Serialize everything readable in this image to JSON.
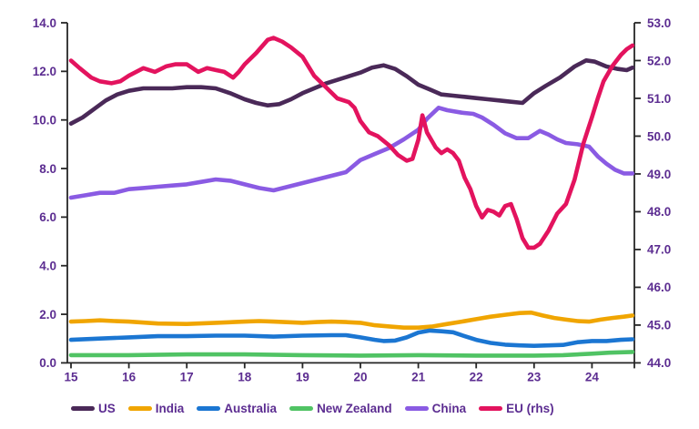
{
  "styles": {
    "axis_text_color": "#5C2D91",
    "axis_line_color": "#262626",
    "background": "#FFFFFF"
  },
  "chart_data": {
    "type": "line",
    "title": "",
    "xlabel": "",
    "ylabel_left": "",
    "ylabel_right": "",
    "grid": false,
    "legend_position": "bottom",
    "x_axis": {
      "min": 15,
      "max": 24.75,
      "tick_values": [
        15,
        16,
        17,
        18,
        19,
        20,
        21,
        22,
        23,
        24
      ],
      "tick_labels": [
        "15",
        "16",
        "17",
        "18",
        "19",
        "20",
        "21",
        "22",
        "23",
        "24"
      ]
    },
    "y_axis_left": {
      "min": 0,
      "max": 14,
      "step": 2,
      "decimals": 1,
      "tick_labels": [
        "0.0",
        "2.0",
        "4.0",
        "6.0",
        "8.0",
        "10.0",
        "12.0",
        "14.0"
      ]
    },
    "y_axis_right": {
      "min": 44,
      "max": 53,
      "step": 1,
      "decimals": 1,
      "tick_labels": [
        "44.0",
        "45.0",
        "46.0",
        "47.0",
        "48.0",
        "49.0",
        "50.0",
        "51.0",
        "52.0",
        "53.0"
      ]
    },
    "series": [
      {
        "name": "US",
        "axis": "left",
        "color": "#4A2958",
        "points": [
          [
            15.0,
            9.85
          ],
          [
            15.2,
            10.1
          ],
          [
            15.4,
            10.45
          ],
          [
            15.6,
            10.8
          ],
          [
            15.8,
            11.05
          ],
          [
            16.0,
            11.2
          ],
          [
            16.25,
            11.3
          ],
          [
            16.5,
            11.3
          ],
          [
            16.75,
            11.3
          ],
          [
            17.0,
            11.35
          ],
          [
            17.25,
            11.35
          ],
          [
            17.5,
            11.3
          ],
          [
            17.75,
            11.1
          ],
          [
            18.0,
            10.85
          ],
          [
            18.2,
            10.7
          ],
          [
            18.4,
            10.6
          ],
          [
            18.6,
            10.65
          ],
          [
            18.8,
            10.85
          ],
          [
            19.0,
            11.1
          ],
          [
            19.2,
            11.3
          ],
          [
            19.4,
            11.5
          ],
          [
            19.6,
            11.65
          ],
          [
            19.8,
            11.8
          ],
          [
            20.0,
            11.95
          ],
          [
            20.2,
            12.15
          ],
          [
            20.4,
            12.25
          ],
          [
            20.6,
            12.1
          ],
          [
            20.8,
            11.8
          ],
          [
            21.0,
            11.45
          ],
          [
            21.2,
            11.25
          ],
          [
            21.4,
            11.05
          ],
          [
            21.6,
            11.0
          ],
          [
            21.8,
            10.95
          ],
          [
            22.0,
            10.9
          ],
          [
            22.2,
            10.85
          ],
          [
            22.4,
            10.8
          ],
          [
            22.6,
            10.75
          ],
          [
            22.8,
            10.7
          ],
          [
            23.0,
            11.1
          ],
          [
            23.2,
            11.4
          ],
          [
            23.45,
            11.75
          ],
          [
            23.7,
            12.2
          ],
          [
            23.9,
            12.45
          ],
          [
            24.05,
            12.4
          ],
          [
            24.25,
            12.2
          ],
          [
            24.45,
            12.1
          ],
          [
            24.6,
            12.05
          ],
          [
            24.7,
            12.15
          ]
        ]
      },
      {
        "name": "India",
        "axis": "left",
        "color": "#F0A500",
        "points": [
          [
            15.0,
            1.7
          ],
          [
            15.25,
            1.72
          ],
          [
            15.5,
            1.75
          ],
          [
            15.75,
            1.72
          ],
          [
            16.0,
            1.7
          ],
          [
            16.5,
            1.62
          ],
          [
            17.0,
            1.6
          ],
          [
            17.5,
            1.65
          ],
          [
            18.0,
            1.7
          ],
          [
            18.25,
            1.72
          ],
          [
            18.5,
            1.7
          ],
          [
            19.0,
            1.65
          ],
          [
            19.25,
            1.68
          ],
          [
            19.5,
            1.7
          ],
          [
            19.75,
            1.68
          ],
          [
            20.0,
            1.65
          ],
          [
            20.25,
            1.55
          ],
          [
            20.5,
            1.5
          ],
          [
            20.75,
            1.45
          ],
          [
            21.0,
            1.45
          ],
          [
            21.25,
            1.5
          ],
          [
            21.5,
            1.6
          ],
          [
            21.75,
            1.7
          ],
          [
            22.0,
            1.8
          ],
          [
            22.25,
            1.9
          ],
          [
            22.5,
            1.98
          ],
          [
            22.75,
            2.05
          ],
          [
            22.95,
            2.07
          ],
          [
            23.15,
            1.95
          ],
          [
            23.35,
            1.85
          ],
          [
            23.55,
            1.78
          ],
          [
            23.75,
            1.72
          ],
          [
            23.95,
            1.7
          ],
          [
            24.15,
            1.78
          ],
          [
            24.35,
            1.85
          ],
          [
            24.55,
            1.9
          ],
          [
            24.7,
            1.95
          ]
        ]
      },
      {
        "name": "Australia",
        "axis": "left",
        "color": "#1B76D2",
        "points": [
          [
            15.0,
            0.95
          ],
          [
            15.5,
            1.0
          ],
          [
            16.0,
            1.05
          ],
          [
            16.5,
            1.1
          ],
          [
            17.0,
            1.1
          ],
          [
            17.5,
            1.12
          ],
          [
            18.0,
            1.12
          ],
          [
            18.5,
            1.08
          ],
          [
            19.0,
            1.12
          ],
          [
            19.5,
            1.14
          ],
          [
            19.75,
            1.14
          ],
          [
            20.0,
            1.05
          ],
          [
            20.25,
            0.95
          ],
          [
            20.4,
            0.9
          ],
          [
            20.6,
            0.92
          ],
          [
            20.8,
            1.05
          ],
          [
            21.0,
            1.25
          ],
          [
            21.2,
            1.33
          ],
          [
            21.4,
            1.3
          ],
          [
            21.6,
            1.26
          ],
          [
            21.8,
            1.1
          ],
          [
            22.0,
            0.95
          ],
          [
            22.25,
            0.82
          ],
          [
            22.5,
            0.75
          ],
          [
            22.75,
            0.72
          ],
          [
            23.0,
            0.7
          ],
          [
            23.25,
            0.72
          ],
          [
            23.5,
            0.74
          ],
          [
            23.75,
            0.85
          ],
          [
            24.0,
            0.9
          ],
          [
            24.25,
            0.9
          ],
          [
            24.5,
            0.95
          ],
          [
            24.7,
            0.97
          ]
        ]
      },
      {
        "name": "New Zealand",
        "axis": "left",
        "color": "#50C364",
        "points": [
          [
            15.0,
            0.32
          ],
          [
            16.0,
            0.32
          ],
          [
            17.0,
            0.35
          ],
          [
            18.0,
            0.35
          ],
          [
            19.0,
            0.32
          ],
          [
            20.0,
            0.3
          ],
          [
            21.0,
            0.32
          ],
          [
            22.0,
            0.3
          ],
          [
            23.0,
            0.3
          ],
          [
            23.5,
            0.32
          ],
          [
            24.0,
            0.38
          ],
          [
            24.3,
            0.42
          ],
          [
            24.7,
            0.45
          ]
        ]
      },
      {
        "name": "China",
        "axis": "left",
        "color": "#8A5BE3",
        "points": [
          [
            15.0,
            6.8
          ],
          [
            15.25,
            6.9
          ],
          [
            15.5,
            7.0
          ],
          [
            15.75,
            7.0
          ],
          [
            16.0,
            7.15
          ],
          [
            16.25,
            7.2
          ],
          [
            16.5,
            7.25
          ],
          [
            16.75,
            7.3
          ],
          [
            17.0,
            7.35
          ],
          [
            17.25,
            7.45
          ],
          [
            17.5,
            7.55
          ],
          [
            17.75,
            7.5
          ],
          [
            18.0,
            7.35
          ],
          [
            18.25,
            7.2
          ],
          [
            18.5,
            7.1
          ],
          [
            18.75,
            7.25
          ],
          [
            19.0,
            7.4
          ],
          [
            19.25,
            7.55
          ],
          [
            19.5,
            7.7
          ],
          [
            19.75,
            7.85
          ],
          [
            20.0,
            8.35
          ],
          [
            20.25,
            8.6
          ],
          [
            20.5,
            8.85
          ],
          [
            20.75,
            9.2
          ],
          [
            21.0,
            9.6
          ],
          [
            21.15,
            10.05
          ],
          [
            21.35,
            10.5
          ],
          [
            21.5,
            10.4
          ],
          [
            21.75,
            10.3
          ],
          [
            21.95,
            10.25
          ],
          [
            22.1,
            10.1
          ],
          [
            22.3,
            9.8
          ],
          [
            22.5,
            9.45
          ],
          [
            22.7,
            9.25
          ],
          [
            22.9,
            9.25
          ],
          [
            23.1,
            9.55
          ],
          [
            23.25,
            9.4
          ],
          [
            23.4,
            9.2
          ],
          [
            23.55,
            9.05
          ],
          [
            23.75,
            9.0
          ],
          [
            23.95,
            8.9
          ],
          [
            24.1,
            8.5
          ],
          [
            24.25,
            8.2
          ],
          [
            24.4,
            7.95
          ],
          [
            24.55,
            7.8
          ],
          [
            24.7,
            7.8
          ]
        ]
      },
      {
        "name": "EU (rhs)",
        "axis": "right",
        "color": "#E3135E",
        "points": [
          [
            15.0,
            52.0
          ],
          [
            15.15,
            51.8
          ],
          [
            15.35,
            51.55
          ],
          [
            15.5,
            51.45
          ],
          [
            15.7,
            51.4
          ],
          [
            15.85,
            51.45
          ],
          [
            16.0,
            51.6
          ],
          [
            16.25,
            51.8
          ],
          [
            16.45,
            51.7
          ],
          [
            16.65,
            51.85
          ],
          [
            16.8,
            51.9
          ],
          [
            17.0,
            51.9
          ],
          [
            17.2,
            51.7
          ],
          [
            17.35,
            51.8
          ],
          [
            17.5,
            51.75
          ],
          [
            17.65,
            51.7
          ],
          [
            17.8,
            51.55
          ],
          [
            17.9,
            51.7
          ],
          [
            18.0,
            51.9
          ],
          [
            18.2,
            52.2
          ],
          [
            18.4,
            52.55
          ],
          [
            18.5,
            52.6
          ],
          [
            18.65,
            52.5
          ],
          [
            18.8,
            52.35
          ],
          [
            19.0,
            52.1
          ],
          [
            19.2,
            51.6
          ],
          [
            19.4,
            51.3
          ],
          [
            19.6,
            51.0
          ],
          [
            19.8,
            50.9
          ],
          [
            19.9,
            50.75
          ],
          [
            20.0,
            50.4
          ],
          [
            20.15,
            50.1
          ],
          [
            20.3,
            50.0
          ],
          [
            20.5,
            49.75
          ],
          [
            20.65,
            49.5
          ],
          [
            20.8,
            49.35
          ],
          [
            20.9,
            49.4
          ],
          [
            21.0,
            49.9
          ],
          [
            21.07,
            50.55
          ],
          [
            21.15,
            50.1
          ],
          [
            21.3,
            49.7
          ],
          [
            21.4,
            49.55
          ],
          [
            21.5,
            49.65
          ],
          [
            21.6,
            49.55
          ],
          [
            21.7,
            49.35
          ],
          [
            21.8,
            48.9
          ],
          [
            21.9,
            48.6
          ],
          [
            22.0,
            48.15
          ],
          [
            22.1,
            47.85
          ],
          [
            22.2,
            48.05
          ],
          [
            22.3,
            48.0
          ],
          [
            22.4,
            47.9
          ],
          [
            22.5,
            48.15
          ],
          [
            22.6,
            48.2
          ],
          [
            22.7,
            47.8
          ],
          [
            22.8,
            47.3
          ],
          [
            22.9,
            47.05
          ],
          [
            23.0,
            47.05
          ],
          [
            23.1,
            47.15
          ],
          [
            23.25,
            47.5
          ],
          [
            23.4,
            47.95
          ],
          [
            23.55,
            48.2
          ],
          [
            23.7,
            48.85
          ],
          [
            23.85,
            49.8
          ],
          [
            24.0,
            50.5
          ],
          [
            24.1,
            51.0
          ],
          [
            24.2,
            51.45
          ],
          [
            24.35,
            51.85
          ],
          [
            24.5,
            52.15
          ],
          [
            24.6,
            52.3
          ],
          [
            24.7,
            52.4
          ]
        ]
      }
    ]
  }
}
